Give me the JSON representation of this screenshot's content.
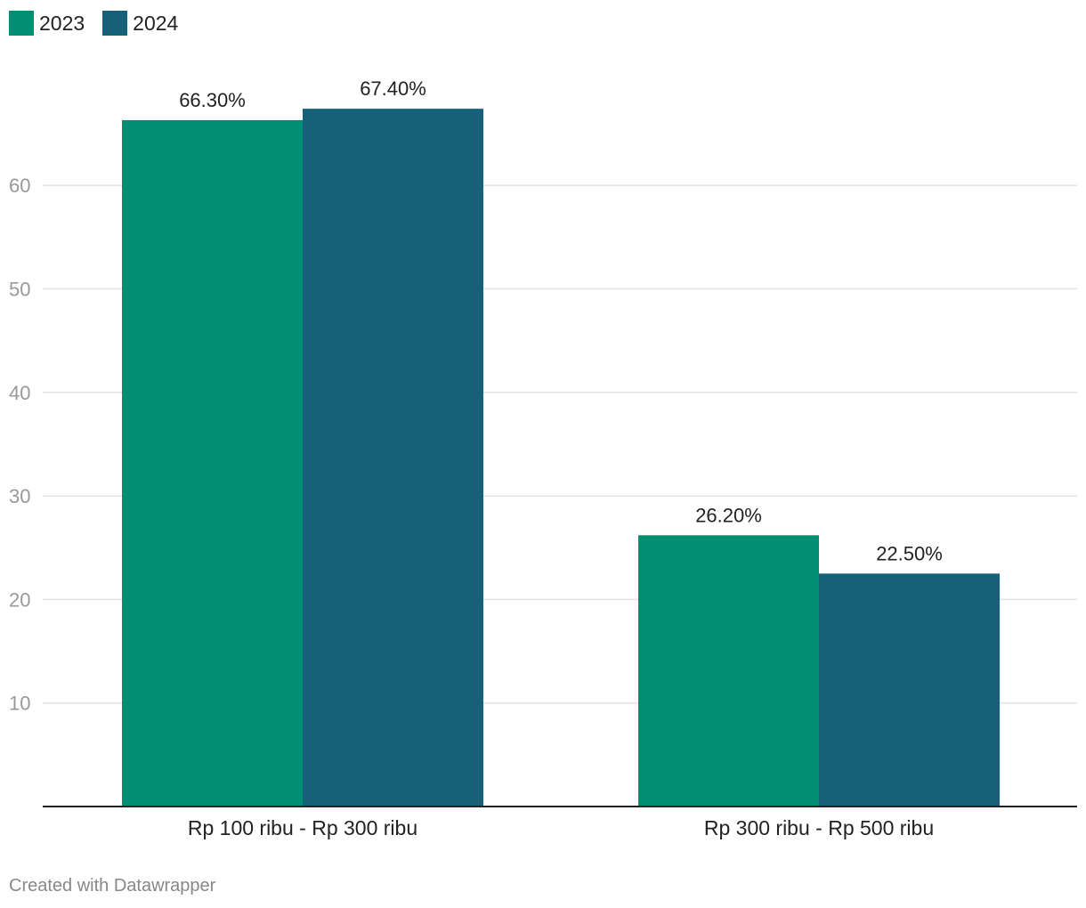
{
  "chart_data": {
    "type": "bar",
    "categories": [
      "Rp 100 ribu - Rp 300 ribu",
      "Rp 300 ribu - Rp 500 ribu"
    ],
    "series": [
      {
        "name": "2023",
        "color": "#008f72",
        "values": [
          66.3,
          26.2
        ],
        "labels": [
          "66.30%",
          "26.20%"
        ]
      },
      {
        "name": "2024",
        "color": "#16607a",
        "values": [
          67.4,
          22.5
        ],
        "labels": [
          "67.40%",
          "22.50%"
        ]
      }
    ],
    "yticks": [
      "10",
      "20",
      "30",
      "40",
      "50",
      "60"
    ],
    "ylim": [
      0,
      70
    ],
    "grid": true,
    "legend_position": "top-left"
  },
  "credit": "Created with Datawrapper"
}
